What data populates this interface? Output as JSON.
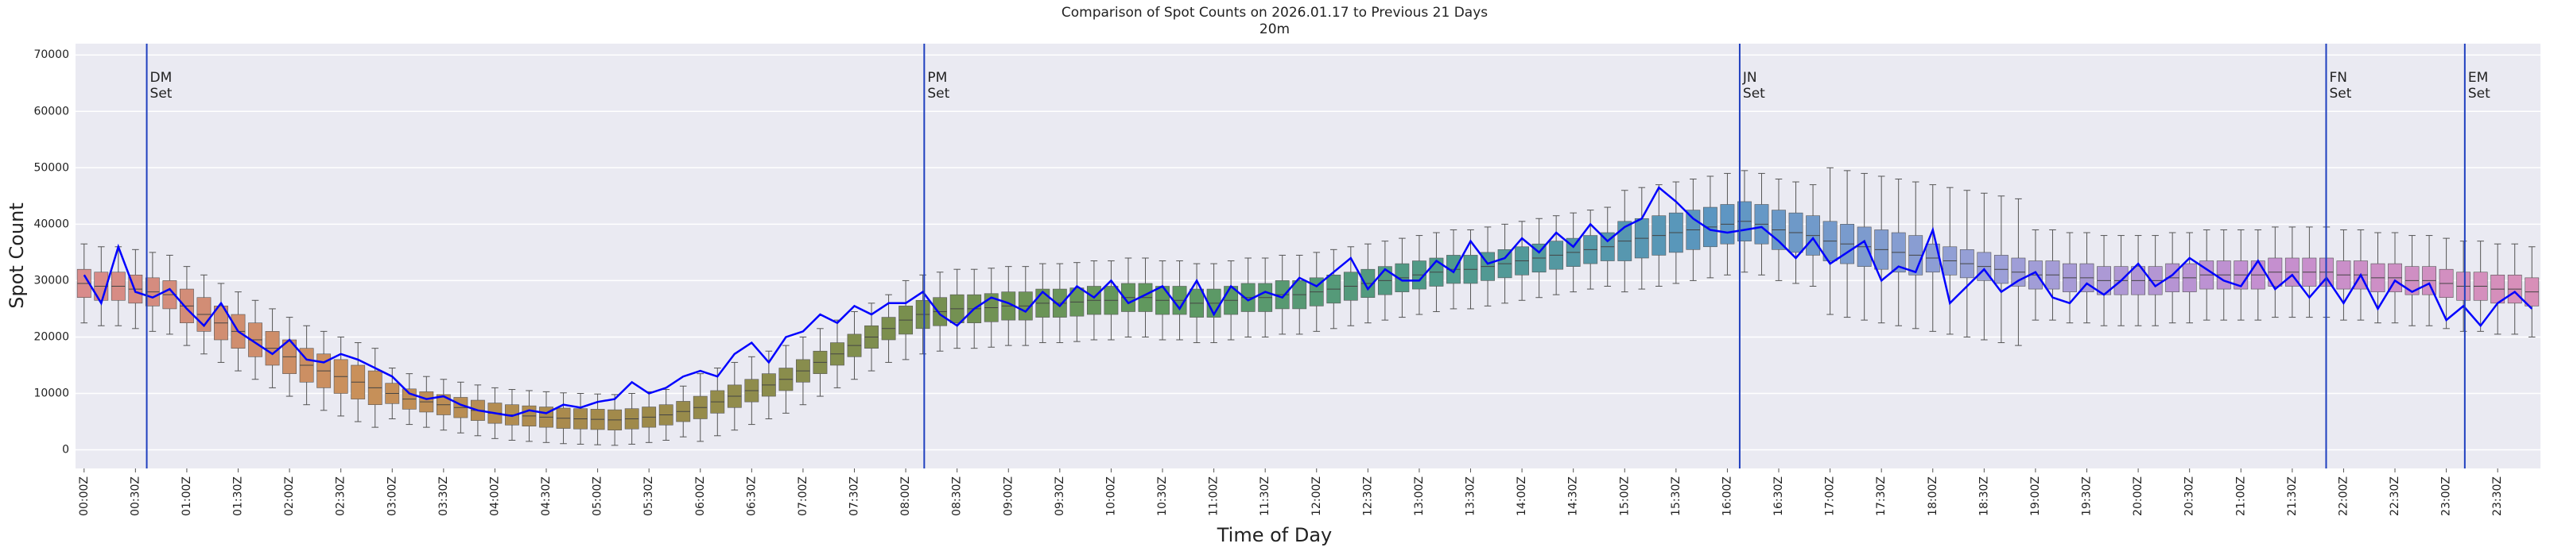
{
  "chart_data": {
    "type": "box",
    "title": "Comparison of Spot Counts on 2026.01.17 to Previous 21 Days",
    "subtitle": "20m",
    "x_label": "Time of Day",
    "y_label": "Spot Count",
    "ylim": [
      -3300,
      72000
    ],
    "yticks": [
      0,
      10000,
      20000,
      30000,
      40000,
      50000,
      60000,
      70000
    ],
    "grid": true,
    "palette": [
      "#d98b8b",
      "#c9905a",
      "#a08a4a",
      "#7a8f4e",
      "#5e9960",
      "#4f9a8a",
      "#5b96c2",
      "#9aa0d8",
      "#c48fd0",
      "#d88fb8"
    ],
    "categories": [
      "00:00Z",
      null,
      null,
      "00:30Z",
      null,
      null,
      "01:00Z",
      null,
      null,
      "01:30Z",
      null,
      null,
      "02:00Z",
      null,
      null,
      "02:30Z",
      null,
      null,
      "03:00Z",
      null,
      null,
      "03:30Z",
      null,
      null,
      "04:00Z",
      null,
      null,
      "04:30Z",
      null,
      null,
      "05:00Z",
      null,
      null,
      "05:30Z",
      null,
      null,
      "06:00Z",
      null,
      null,
      "06:30Z",
      null,
      null,
      "07:00Z",
      null,
      null,
      "07:30Z",
      null,
      null,
      "08:00Z",
      null,
      null,
      "08:30Z",
      null,
      null,
      "09:00Z",
      null,
      null,
      "09:30Z",
      null,
      null,
      "10:00Z",
      null,
      null,
      "10:30Z",
      null,
      null,
      "11:00Z",
      null,
      null,
      "11:30Z",
      null,
      null,
      "12:00Z",
      null,
      null,
      "12:30Z",
      null,
      null,
      "13:00Z",
      null,
      null,
      "13:30Z",
      null,
      null,
      "14:00Z",
      null,
      null,
      "14:30Z",
      null,
      null,
      "15:00Z",
      null,
      null,
      "15:30Z",
      null,
      null,
      "16:00Z",
      null,
      null,
      "16:30Z",
      null,
      null,
      "17:00Z",
      null,
      null,
      "17:30Z",
      null,
      null,
      "18:00Z",
      null,
      null,
      "18:30Z",
      null,
      null,
      "19:00Z",
      null,
      null,
      "19:30Z",
      null,
      null,
      "20:00Z",
      null,
      null,
      "20:30Z",
      null,
      null,
      "21:00Z",
      null,
      null,
      "21:30Z",
      null,
      null,
      "22:00Z",
      null,
      null,
      "22:30Z",
      null,
      null,
      "23:00Z",
      null,
      null,
      "23:30Z",
      null,
      null
    ],
    "boxes": {
      "median": [
        29500,
        29000,
        29000,
        28500,
        28000,
        27500,
        25500,
        24000,
        22500,
        21000,
        19500,
        18000,
        16500,
        15000,
        14000,
        13000,
        12000,
        11000,
        10000,
        9000,
        8500,
        8000,
        7500,
        7000,
        6500,
        6200,
        6000,
        5800,
        5600,
        5500,
        5400,
        5300,
        5500,
        5800,
        6200,
        6800,
        7500,
        8500,
        9500,
        10500,
        11500,
        12500,
        14000,
        15500,
        17000,
        18500,
        20000,
        21500,
        23000,
        24000,
        24500,
        25000,
        25000,
        25200,
        25500,
        25500,
        26000,
        26000,
        26200,
        26500,
        26500,
        27000,
        27000,
        26500,
        26500,
        26000,
        26000,
        26500,
        27000,
        27000,
        27500,
        27500,
        28000,
        28500,
        29000,
        29500,
        30000,
        30500,
        31000,
        31500,
        32000,
        32000,
        32500,
        33000,
        33500,
        34000,
        34500,
        35000,
        35500,
        36000,
        37000,
        37500,
        38000,
        38500,
        39000,
        39500,
        40000,
        40500,
        40000,
        39000,
        38500,
        38000,
        37000,
        36500,
        36000,
        35500,
        35000,
        34500,
        34000,
        33500,
        33000,
        32500,
        32000,
        31500,
        31000,
        31000,
        30500,
        30500,
        30000,
        30000,
        30000,
        30000,
        30500,
        30500,
        31000,
        31000,
        31000,
        31000,
        31500,
        31500,
        31500,
        31500,
        31000,
        31000,
        30500,
        30500,
        30000,
        30000,
        29500,
        29000,
        29000,
        28500,
        28500,
        28000
      ],
      "q1": [
        27000,
        26500,
        26500,
        26000,
        25500,
        25000,
        22500,
        21000,
        19500,
        18000,
        16500,
        15000,
        13500,
        12000,
        11000,
        10000,
        9000,
        8000,
        8200,
        7200,
        6700,
        6200,
        5700,
        5200,
        4700,
        4400,
        4200,
        4000,
        3800,
        3700,
        3600,
        3500,
        3700,
        4000,
        4400,
        5000,
        5500,
        6500,
        7500,
        8500,
        9500,
        10500,
        12000,
        13500,
        15000,
        16500,
        18000,
        19500,
        20500,
        21500,
        22000,
        22500,
        22500,
        22700,
        23000,
        23000,
        23500,
        23500,
        23700,
        24000,
        24000,
        24500,
        24500,
        24000,
        24000,
        23500,
        23500,
        24000,
        24500,
        24500,
        25000,
        25000,
        25500,
        26000,
        26500,
        27000,
        27500,
        28000,
        28500,
        29000,
        29500,
        29500,
        30000,
        30500,
        31000,
        31500,
        32000,
        32500,
        33000,
        33500,
        33500,
        34000,
        34500,
        35000,
        35500,
        36000,
        36500,
        37000,
        36500,
        35500,
        35000,
        34500,
        33500,
        33000,
        32500,
        32000,
        31500,
        31000,
        31500,
        31000,
        30500,
        30000,
        29500,
        29000,
        28500,
        28500,
        28000,
        28000,
        27500,
        27500,
        27500,
        27500,
        28000,
        28000,
        28500,
        28500,
        28500,
        28500,
        29000,
        29000,
        29000,
        29000,
        28500,
        28500,
        28000,
        28000,
        27500,
        27500,
        27000,
        26500,
        26500,
        26000,
        26000,
        25500
      ],
      "q3": [
        32000,
        31500,
        31500,
        31000,
        30500,
        30000,
        28500,
        27000,
        25500,
        24000,
        22500,
        21000,
        19500,
        18000,
        17000,
        16000,
        15000,
        14000,
        11800,
        10800,
        10300,
        9800,
        9300,
        8800,
        8300,
        8000,
        7800,
        7600,
        7400,
        7300,
        7200,
        7100,
        7300,
        7600,
        8000,
        8600,
        9500,
        10500,
        11500,
        12500,
        13500,
        14500,
        16000,
        17500,
        19000,
        20500,
        22000,
        23500,
        25500,
        26500,
        27000,
        27500,
        27500,
        27700,
        28000,
        28000,
        28500,
        28500,
        28700,
        29000,
        29000,
        29500,
        29500,
        29000,
        29000,
        28500,
        28500,
        29000,
        29500,
        29500,
        30000,
        30000,
        30500,
        31000,
        31500,
        32000,
        32500,
        33000,
        33500,
        34000,
        34500,
        34500,
        35000,
        35500,
        36000,
        36500,
        37000,
        37500,
        38000,
        38500,
        40500,
        41000,
        41500,
        42000,
        42500,
        43000,
        43500,
        44000,
        43500,
        42500,
        42000,
        41500,
        40500,
        40000,
        39500,
        39000,
        38500,
        38000,
        36500,
        36000,
        35500,
        35000,
        34500,
        34000,
        33500,
        33500,
        33000,
        33000,
        32500,
        32500,
        32500,
        32500,
        33000,
        33000,
        33500,
        33500,
        33500,
        33500,
        34000,
        34000,
        34000,
        34000,
        33500,
        33500,
        33000,
        33000,
        32500,
        32500,
        32000,
        31500,
        31500,
        31000,
        31000,
        30500
      ],
      "whislo": [
        22500,
        22000,
        22000,
        21500,
        21000,
        20500,
        18500,
        17000,
        15500,
        14000,
        12500,
        11000,
        9500,
        8000,
        7000,
        6000,
        5000,
        4000,
        5500,
        4500,
        4000,
        3500,
        3000,
        2500,
        2000,
        1700,
        1500,
        1300,
        1100,
        1000,
        900,
        800,
        1000,
        1300,
        1700,
        2300,
        1500,
        2500,
        3500,
        4500,
        5500,
        6500,
        8000,
        9500,
        11000,
        12500,
        14000,
        15500,
        16000,
        17000,
        17500,
        18000,
        18000,
        18200,
        18500,
        18500,
        19000,
        19000,
        19200,
        19500,
        19500,
        20000,
        20000,
        19500,
        19500,
        19000,
        19000,
        19500,
        20000,
        20000,
        20500,
        20500,
        21000,
        21500,
        22000,
        22500,
        23000,
        23500,
        24000,
        24500,
        25000,
        25000,
        25500,
        26000,
        26500,
        27000,
        27500,
        28000,
        28500,
        29000,
        28000,
        28500,
        29000,
        29500,
        30000,
        30500,
        31000,
        31500,
        31000,
        30000,
        29500,
        29000,
        24000,
        23500,
        23000,
        22500,
        22000,
        21500,
        21000,
        20500,
        20000,
        19500,
        19000,
        18500,
        23000,
        23000,
        22500,
        22500,
        22000,
        22000,
        22000,
        22000,
        22500,
        22500,
        23000,
        23000,
        23000,
        23000,
        23500,
        23500,
        23500,
        23500,
        23000,
        23000,
        22500,
        22500,
        22000,
        22000,
        21500,
        21000,
        21000,
        20500,
        20500,
        20000
      ],
      "whishi": [
        36500,
        36000,
        36000,
        35500,
        35000,
        34500,
        32500,
        31000,
        29500,
        28000,
        26500,
        25000,
        23500,
        22000,
        21000,
        20000,
        19000,
        18000,
        14500,
        13500,
        13000,
        12500,
        12000,
        11500,
        11000,
        10700,
        10500,
        10300,
        10100,
        10000,
        9900,
        9800,
        10000,
        10300,
        10700,
        11300,
        13500,
        14500,
        15500,
        16500,
        17500,
        18500,
        20000,
        21500,
        23000,
        24500,
        26000,
        27500,
        30000,
        31000,
        31500,
        32000,
        32000,
        32200,
        32500,
        32500,
        33000,
        33000,
        33200,
        33500,
        33500,
        34000,
        34000,
        33500,
        33500,
        33000,
        33000,
        33500,
        34000,
        34000,
        34500,
        34500,
        35000,
        35500,
        36000,
        36500,
        37000,
        37500,
        38000,
        38500,
        39000,
        39000,
        39500,
        40000,
        40500,
        41000,
        41500,
        42000,
        42500,
        43000,
        46000,
        46500,
        47000,
        47500,
        48000,
        48500,
        49000,
        49500,
        49000,
        48000,
        47500,
        47000,
        50000,
        49500,
        49000,
        48500,
        48000,
        47500,
        47000,
        46500,
        46000,
        45500,
        45000,
        44500,
        39000,
        39000,
        38500,
        38500,
        38000,
        38000,
        38000,
        38000,
        38500,
        38500,
        39000,
        39000,
        39000,
        39000,
        39500,
        39500,
        39500,
        39500,
        39000,
        39000,
        38500,
        38500,
        38000,
        38000,
        37500,
        37000,
        37000,
        36500,
        36500,
        36000
      ]
    },
    "line": {
      "color": "#0000ff",
      "values": [
        31000,
        26000,
        36000,
        28000,
        27000,
        28500,
        25000,
        22000,
        26000,
        21000,
        19000,
        17000,
        19500,
        16000,
        15500,
        17000,
        16000,
        14500,
        13000,
        10000,
        9000,
        9500,
        8000,
        7000,
        6500,
        6000,
        7000,
        6500,
        8000,
        7500,
        8500,
        9000,
        12000,
        10000,
        11000,
        13000,
        14000,
        13000,
        17000,
        19000,
        15500,
        20000,
        21000,
        24000,
        22500,
        25500,
        24000,
        26000,
        26000,
        28000,
        24000,
        22000,
        25000,
        27000,
        26000,
        24500,
        28000,
        25500,
        29000,
        27000,
        30000,
        26000,
        27500,
        29000,
        25000,
        30000,
        24000,
        29000,
        26500,
        28000,
        27000,
        30500,
        29000,
        31500,
        34000,
        28500,
        32000,
        30000,
        30000,
        33500,
        31500,
        37000,
        33000,
        34000,
        37500,
        35000,
        38500,
        36000,
        40000,
        37000,
        39500,
        41000,
        46500,
        44000,
        41000,
        39000,
        38500,
        39000,
        39500,
        37000,
        34000,
        37500,
        33000,
        35000,
        37000,
        30000,
        32500,
        31500,
        39000,
        26000,
        29000,
        32000,
        28000,
        30000,
        31500,
        27000,
        26000,
        29500,
        27500,
        30000,
        33000,
        29000,
        31000,
        34000,
        32000,
        30000,
        29000,
        33500,
        28500,
        31000,
        27000,
        30500,
        26000,
        31000,
        25000,
        30000,
        28000,
        29500,
        23000,
        25500,
        22000,
        26000,
        28000,
        25000
      ]
    },
    "annotations": [
      {
        "x": 0.61,
        "lines": [
          "DM",
          "Set"
        ],
        "color": "#1f3fbf"
      },
      {
        "x": 8.18,
        "lines": [
          "PM",
          "Set"
        ],
        "color": "#1f3fbf"
      },
      {
        "x": 16.12,
        "lines": [
          "JN",
          "Set"
        ],
        "color": "#1f3fbf"
      },
      {
        "x": 21.83,
        "lines": [
          "FN",
          "Set"
        ],
        "color": "#1f3fbf"
      },
      {
        "x": 23.18,
        "lines": [
          "EM",
          "Set"
        ],
        "color": "#1f3fbf"
      }
    ]
  }
}
